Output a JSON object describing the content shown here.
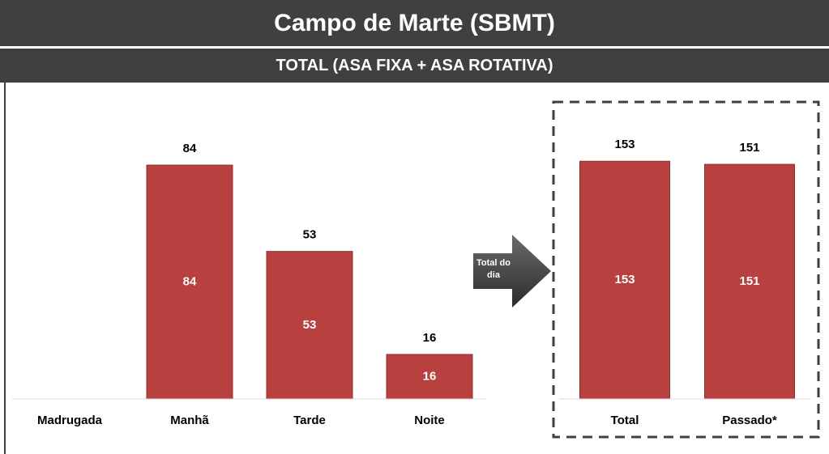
{
  "title": "Campo de Marte (SBMT)",
  "subtitle": "TOTAL (ASA FIXA + ASA ROTATIVA)",
  "chart_data": [
    {
      "type": "bar",
      "categories": [
        "Madrugada",
        "Manhã",
        "Tarde",
        "Noite"
      ],
      "values": [
        null,
        84,
        53,
        16
      ],
      "color": "#b8403e",
      "ylim": [
        0,
        100
      ]
    },
    {
      "type": "bar",
      "categories": [
        "Total",
        "Passado*"
      ],
      "values": [
        153,
        151
      ],
      "color": "#b8403e",
      "ylim": [
        0,
        200
      ],
      "annotation": "Total do dia"
    }
  ]
}
